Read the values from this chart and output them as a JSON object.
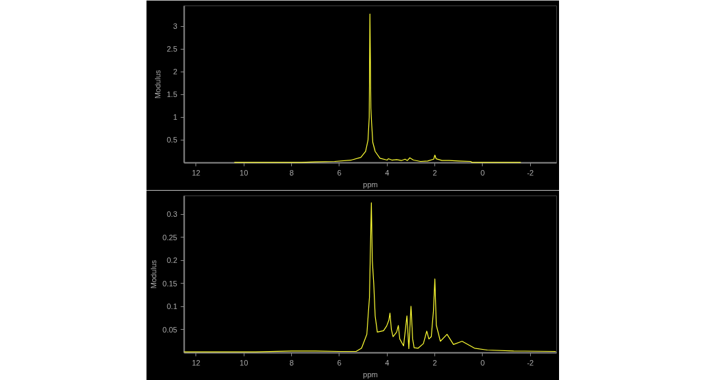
{
  "chart_data": [
    {
      "type": "line",
      "xlabel": "ppm",
      "ylabel": "Modulus",
      "color": "#ffff33",
      "grid": false,
      "x": [
        10.4,
        9.0,
        7.6,
        7.0,
        6.2,
        5.5,
        5.1,
        4.9,
        4.8,
        4.75,
        4.72,
        4.68,
        4.65,
        4.6,
        4.5,
        4.3,
        4.0,
        3.95,
        3.8,
        3.6,
        3.4,
        3.25,
        3.15,
        3.05,
        2.9,
        2.6,
        2.3,
        2.05,
        2.0,
        1.95,
        1.7,
        1.4,
        1.0,
        0.5,
        0.45,
        -0.5,
        -1.6
      ],
      "values": [
        0.01,
        0.01,
        0.01,
        0.02,
        0.03,
        0.06,
        0.12,
        0.25,
        0.5,
        1.0,
        3.27,
        1.2,
        0.88,
        0.45,
        0.25,
        0.1,
        0.06,
        0.09,
        0.06,
        0.07,
        0.05,
        0.08,
        0.05,
        0.11,
        0.06,
        0.03,
        0.04,
        0.08,
        0.17,
        0.09,
        0.05,
        0.05,
        0.04,
        0.03,
        0.01,
        0.01,
        0.01
      ],
      "xlim": [
        12.5,
        -3.1
      ],
      "ylim": [
        0,
        3.45
      ],
      "xticks": [
        12,
        10,
        8,
        6,
        4,
        2,
        0,
        -2
      ],
      "yticks": [
        0.5,
        1,
        1.5,
        2,
        2.5,
        3
      ]
    },
    {
      "type": "line",
      "xlabel": "ppm",
      "ylabel": "Modulus",
      "color": "#ffff33",
      "grid": false,
      "x": [
        12.5,
        11.0,
        9.5,
        8.0,
        7.0,
        6.0,
        5.3,
        5.07,
        4.85,
        4.74,
        4.66,
        4.62,
        4.56,
        4.5,
        4.41,
        4.15,
        4.02,
        3.93,
        3.88,
        3.82,
        3.75,
        3.6,
        3.53,
        3.47,
        3.31,
        3.17,
        3.09,
        3.0,
        2.93,
        2.87,
        2.7,
        2.48,
        2.34,
        2.25,
        2.15,
        2.06,
        2.0,
        1.94,
        1.77,
        1.49,
        1.22,
        0.86,
        0.34,
        -0.2,
        -1.3,
        -3.07
      ],
      "values": [
        0.002,
        0.002,
        0.002,
        0.004,
        0.004,
        0.003,
        0.003,
        0.01,
        0.04,
        0.12,
        0.325,
        0.2,
        0.15,
        0.08,
        0.045,
        0.048,
        0.058,
        0.07,
        0.086,
        0.05,
        0.035,
        0.045,
        0.059,
        0.03,
        0.015,
        0.08,
        0.009,
        0.101,
        0.03,
        0.011,
        0.01,
        0.02,
        0.047,
        0.03,
        0.035,
        0.09,
        0.16,
        0.06,
        0.025,
        0.04,
        0.018,
        0.025,
        0.01,
        0.006,
        0.004,
        0.003
      ],
      "xlim": [
        12.5,
        -3.1
      ],
      "ylim": [
        0,
        0.34
      ],
      "xticks": [
        12,
        10,
        8,
        6,
        4,
        2,
        0,
        -2
      ],
      "yticks": [
        0.05,
        0.1,
        0.15,
        0.2,
        0.25,
        0.3
      ]
    }
  ]
}
